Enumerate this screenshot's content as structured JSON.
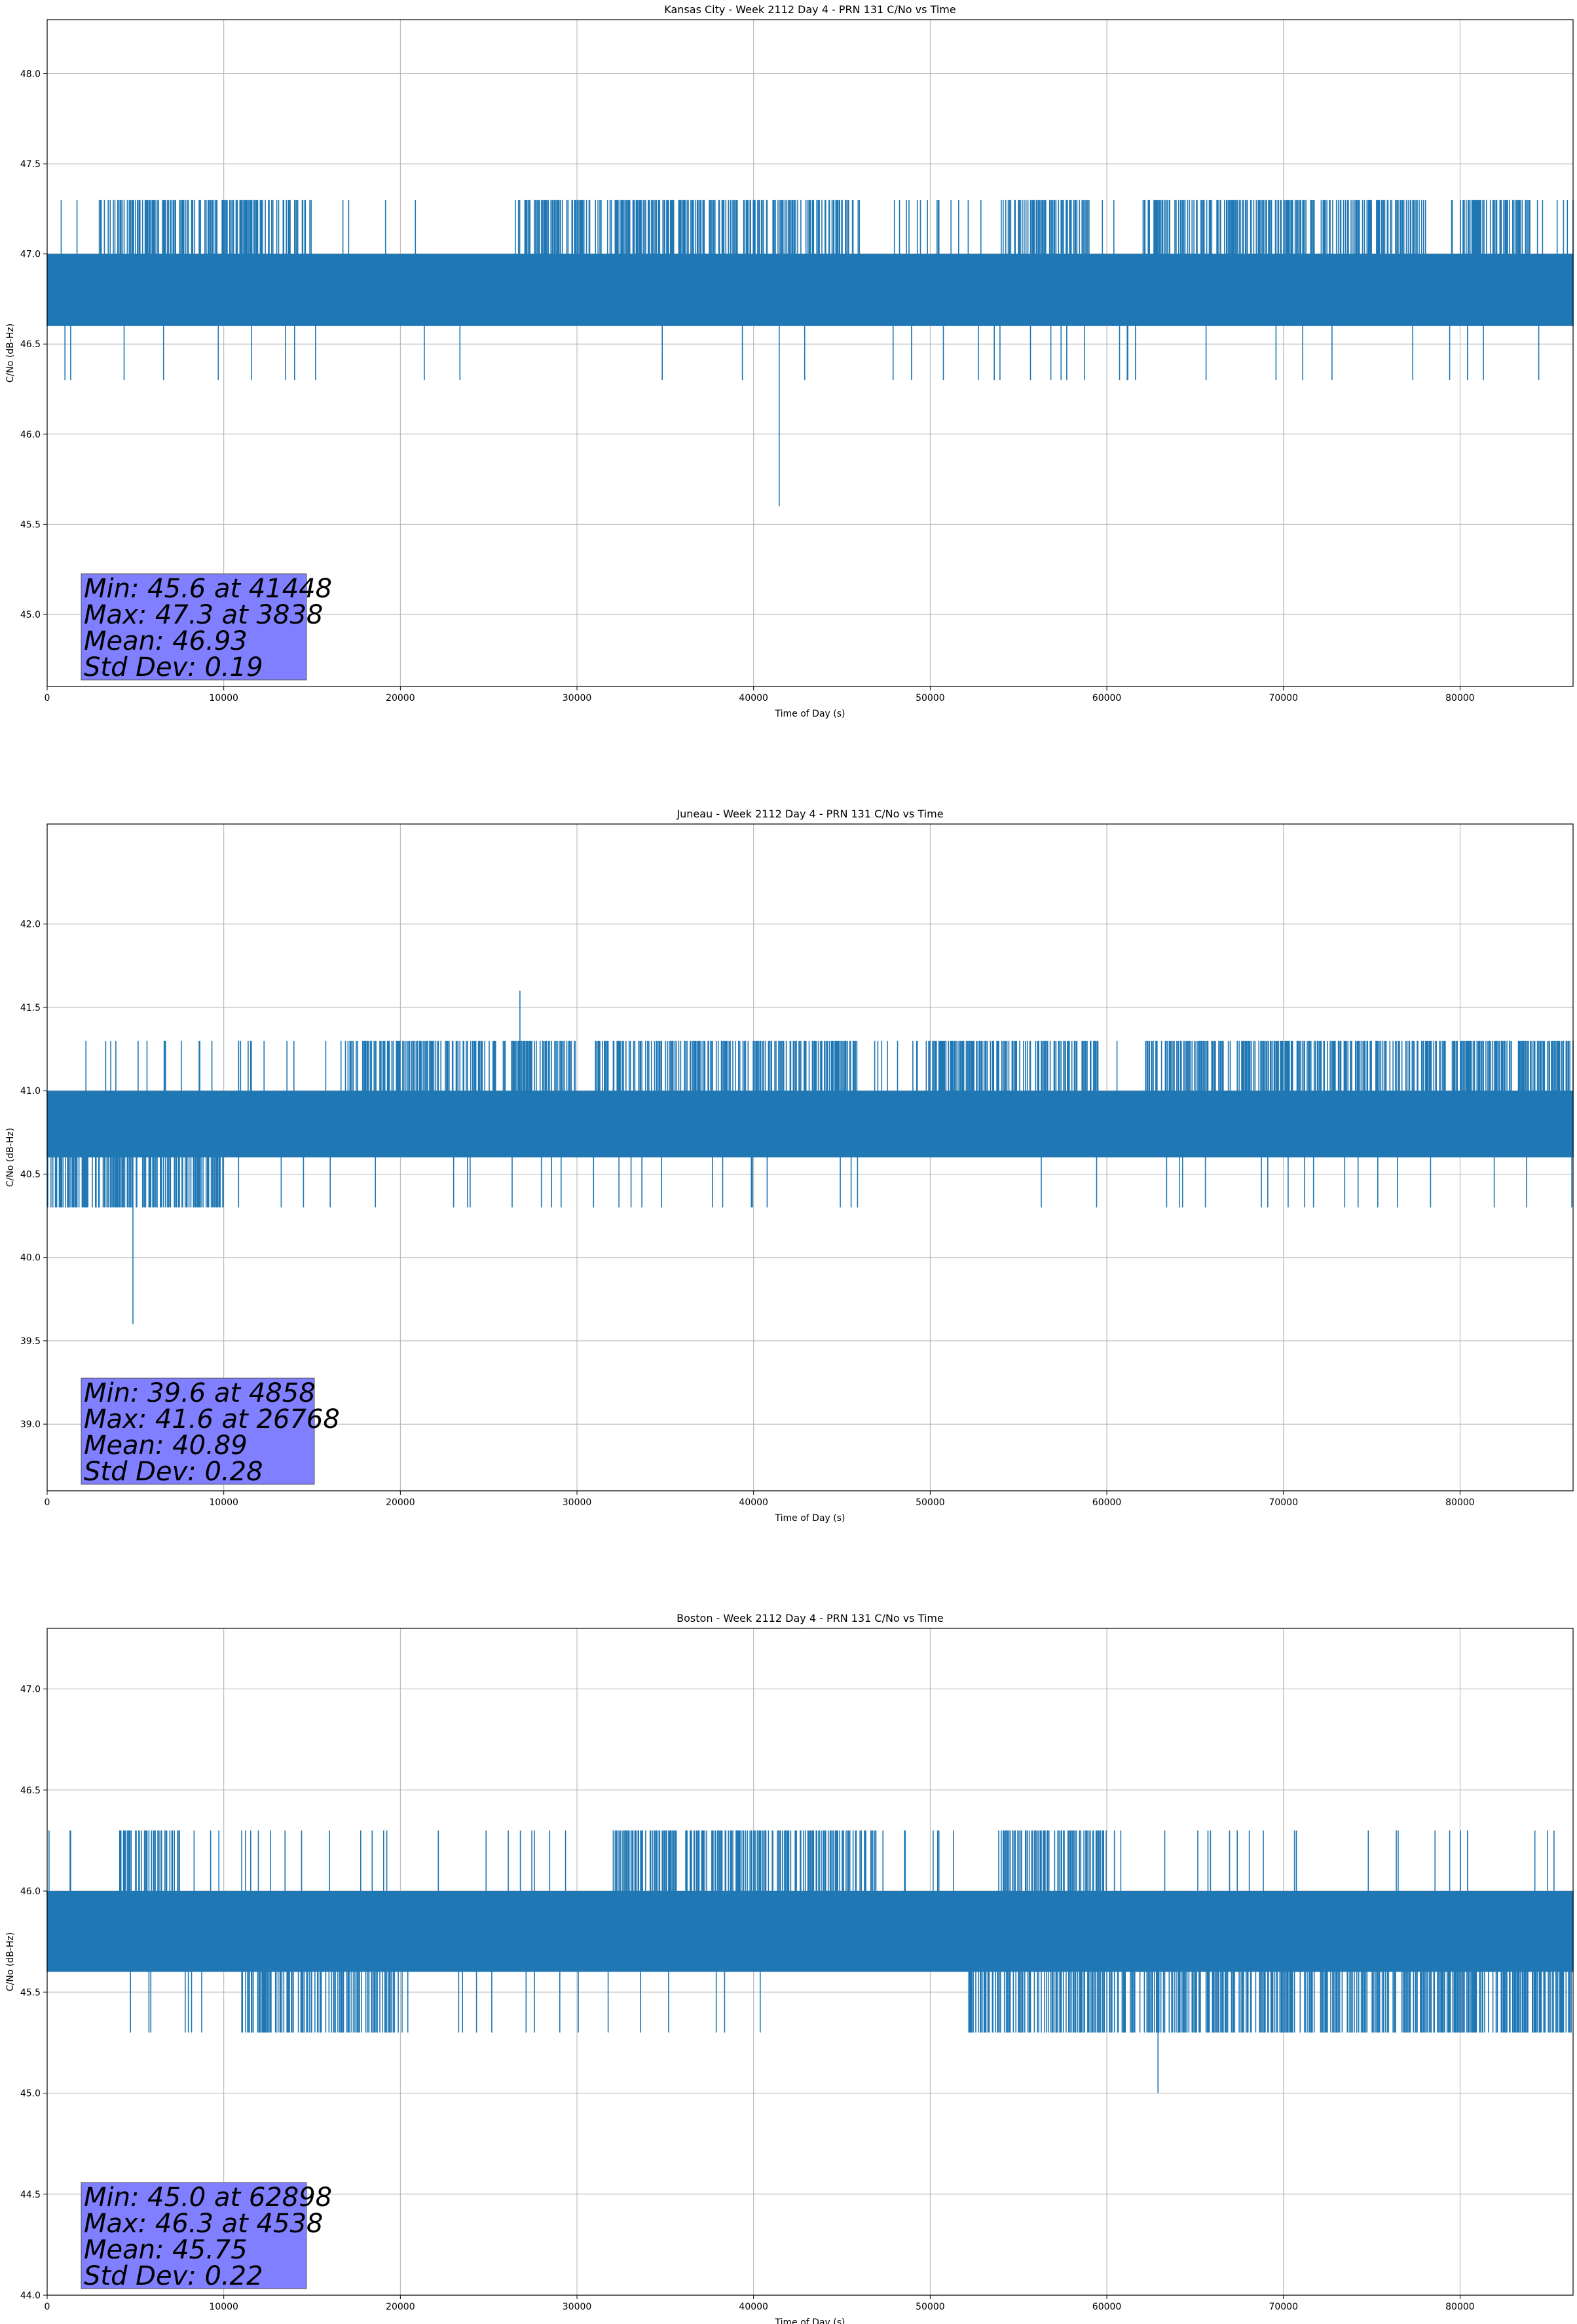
{
  "chart_data": [
    {
      "type": "line",
      "title": "Kansas City - Week 2112 Day 4 - PRN 131 C/No vs Time",
      "xlabel": "Time of Day (s)",
      "ylabel": "C/No (dB-Hz)",
      "xlim": [
        0,
        86400
      ],
      "ylim": [
        44.6,
        48.3
      ],
      "xticks": [
        0,
        10000,
        20000,
        30000,
        40000,
        50000,
        60000,
        70000,
        80000
      ],
      "yticks": [
        45.0,
        45.5,
        46.0,
        46.5,
        47.0,
        47.5,
        48.0
      ],
      "grid": true,
      "color": "#1f77b4",
      "band": {
        "low": 46.6,
        "high": 47.0,
        "spike_high": 47.3,
        "spike_low": 46.3
      },
      "high_regions": [
        [
          3000,
          15000
        ],
        [
          27000,
          46000
        ],
        [
          54000,
          59000
        ],
        [
          62000,
          78000
        ],
        [
          80000,
          84000
        ]
      ],
      "extremes": {
        "min": {
          "x": 41448,
          "y": 45.6
        },
        "max": {
          "x": 3838,
          "y": 47.3
        }
      },
      "stats": {
        "min_text": "Min: 45.6 at 41448",
        "max_text": "Max: 47.3 at 3838",
        "mean_text": "Mean: 46.93",
        "std_text": "Std Dev: 0.19"
      }
    },
    {
      "type": "line",
      "title": "Juneau - Week 2112 Day 4 - PRN 131 C/No vs Time",
      "xlabel": "Time of Day (s)",
      "ylabel": "C/No (dB-Hz)",
      "xlim": [
        0,
        86400
      ],
      "ylim": [
        38.6,
        42.6
      ],
      "xticks": [
        0,
        10000,
        20000,
        30000,
        40000,
        50000,
        60000,
        70000,
        80000
      ],
      "yticks": [
        39.0,
        39.5,
        40.0,
        40.5,
        41.0,
        41.5,
        42.0
      ],
      "grid": true,
      "color": "#1f77b4",
      "band": {
        "low": 40.6,
        "high": 41.0,
        "spike_high": 41.3,
        "spike_low": 40.3
      },
      "high_regions": [
        [
          17000,
          30000
        ],
        [
          31000,
          46000
        ],
        [
          49000,
          59500
        ],
        [
          62000,
          86400
        ]
      ],
      "low_regions": [
        [
          0,
          10000
        ]
      ],
      "extremes": {
        "min": {
          "x": 4858,
          "y": 39.6
        },
        "max": {
          "x": 26768,
          "y": 41.6
        }
      },
      "stats": {
        "min_text": "Min: 39.6 at 4858",
        "max_text": "Max: 41.6 at 26768",
        "mean_text": "Mean: 40.89",
        "std_text": "Std Dev: 0.28"
      }
    },
    {
      "type": "line",
      "title": "Boston - Week 2112 Day 4 - PRN 131 C/No vs Time",
      "xlabel": "Time of Day (s)",
      "ylabel": "C/No (dB-Hz)",
      "xlim": [
        0,
        86400
      ],
      "ylim": [
        44.0,
        47.3
      ],
      "xticks": [
        0,
        10000,
        20000,
        30000,
        40000,
        50000,
        60000,
        70000,
        80000
      ],
      "yticks": [
        44.0,
        44.5,
        45.0,
        45.5,
        46.0,
        46.5,
        47.0
      ],
      "grid": true,
      "color": "#1f77b4",
      "band": {
        "low": 45.6,
        "high": 46.0,
        "spike_high": 46.3,
        "spike_low": 45.3
      },
      "high_regions": [
        [
          4000,
          7500
        ],
        [
          32000,
          47000
        ],
        [
          54000,
          60000
        ]
      ],
      "low_regions": [
        [
          11000,
          20000
        ],
        [
          52000,
          86400
        ]
      ],
      "extremes": {
        "min": {
          "x": 62898,
          "y": 45.0
        },
        "max": {
          "x": 4538,
          "y": 46.3
        }
      },
      "stats": {
        "min_text": "Min: 45.0 at 62898",
        "max_text": "Max: 46.3 at 4538",
        "mean_text": "Mean: 45.75",
        "std_text": "Std Dev: 0.22"
      }
    }
  ]
}
